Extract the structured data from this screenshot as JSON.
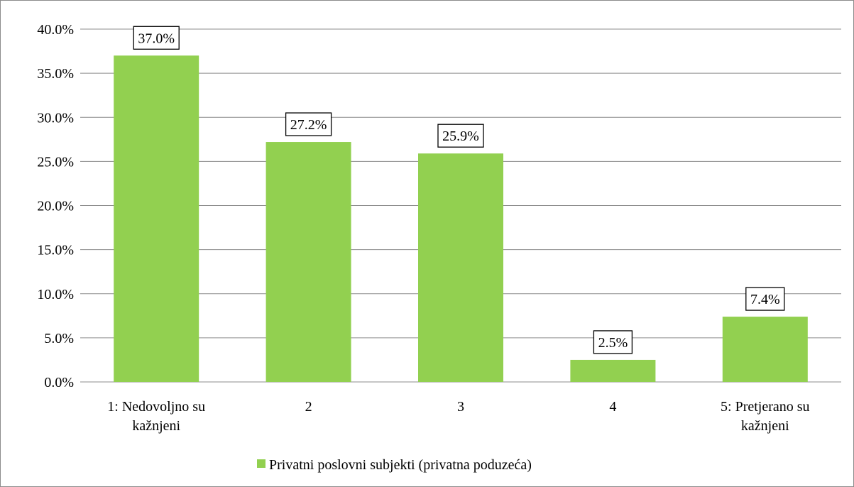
{
  "chart_data": {
    "type": "bar",
    "categories": [
      [
        "1: Nedovoljno su",
        "kažnjeni"
      ],
      [
        "2"
      ],
      [
        "3"
      ],
      [
        "4"
      ],
      [
        "5: Pretjerano su",
        "kažnjeni"
      ]
    ],
    "series": [
      {
        "name": "Privatni poslovni subjekti (privatna poduzeća)",
        "values": [
          37.0,
          27.2,
          25.9,
          2.5,
          7.4
        ],
        "data_labels": [
          "37.0%",
          "27.2%",
          "25.9%",
          "2.5%",
          "7.4%"
        ],
        "color": "#92d050"
      }
    ],
    "y_ticks": [
      "0.0%",
      "5.0%",
      "10.0%",
      "15.0%",
      "20.0%",
      "25.0%",
      "30.0%",
      "35.0%",
      "40.0%"
    ],
    "ylim": [
      0,
      40
    ],
    "y_step": 5,
    "grid": true,
    "gridline_color": "#8c8c8c",
    "legend_position": "bottom",
    "title": "",
    "xlabel": "",
    "ylabel": ""
  }
}
